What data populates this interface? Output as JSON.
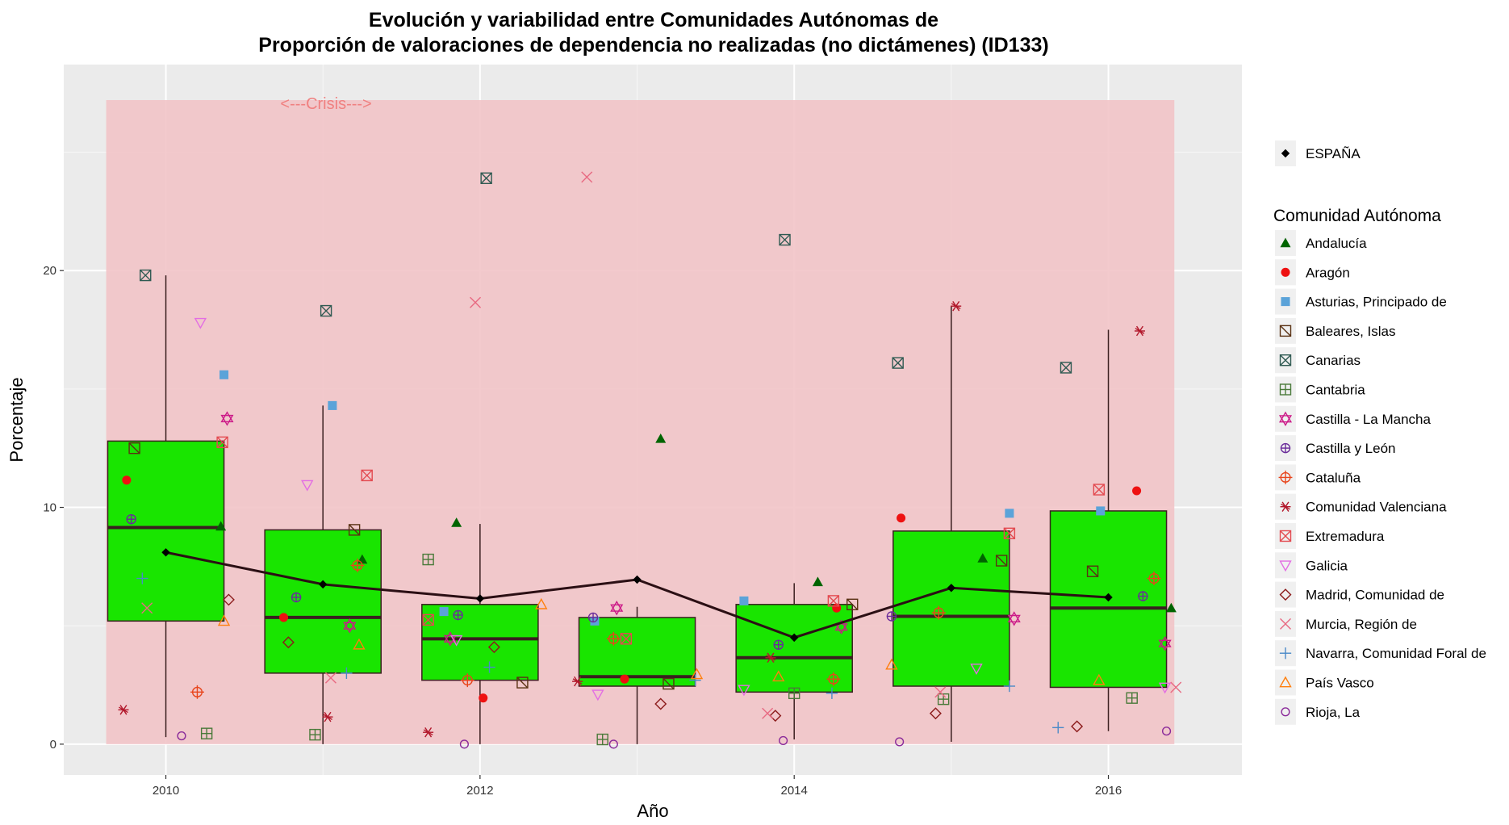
{
  "chart_data": {
    "type": "box",
    "title_line1": "Evolución y variabilidad entre Comunidades Autónomas de",
    "title_line2": "Proporción de valoraciones de dependencia no realizadas (no dictámenes) (ID133)",
    "xlabel": "Año",
    "ylabel": "Porcentaje",
    "xlim": [
      2009.35,
      2016.85
    ],
    "ylim": [
      -1.3,
      28.7
    ],
    "x_ticks": [
      2010,
      2012,
      2014,
      2016
    ],
    "y_ticks": [
      0,
      10,
      20
    ],
    "grid": true,
    "legend_position": "right",
    "colors": {
      "panel": "#ebebeb",
      "shade": "#f2c4c8",
      "box_fill": "#19e500",
      "box_line": "#3a1f1f",
      "espana_line": "#2b0f14",
      "annotation": "#f08080"
    },
    "crisis_band": {
      "x0": 2009.62,
      "x1": 2016.42,
      "y0": 0,
      "y1": 27.2
    },
    "annotation": {
      "text": "<---Crisis--->",
      "x": 2011.02,
      "y": 27.0
    },
    "boxes": [
      {
        "x": 2010,
        "whisker_low": 0.3,
        "q1": 5.2,
        "median": 9.15,
        "q3": 12.8,
        "whisker_high": 19.8
      },
      {
        "x": 2011,
        "whisker_low": 0.0,
        "q1": 3.0,
        "median": 5.35,
        "q3": 9.05,
        "whisker_high": 14.3
      },
      {
        "x": 2012,
        "whisker_low": 0.0,
        "q1": 2.7,
        "median": 4.45,
        "q3": 5.9,
        "whisker_high": 9.3
      },
      {
        "x": 2013,
        "whisker_low": 0.0,
        "q1": 2.45,
        "median": 2.85,
        "q3": 5.35,
        "whisker_high": 5.8
      },
      {
        "x": 2014,
        "whisker_low": 0.2,
        "q1": 2.2,
        "median": 3.65,
        "q3": 5.9,
        "whisker_high": 6.8
      },
      {
        "x": 2015,
        "whisker_low": 0.1,
        "q1": 2.45,
        "median": 5.4,
        "q3": 9.0,
        "whisker_high": 18.5
      },
      {
        "x": 2016,
        "whisker_low": 0.55,
        "q1": 2.4,
        "median": 5.75,
        "q3": 9.85,
        "whisker_high": 17.5
      }
    ],
    "espana": {
      "name": "ESPAÑA",
      "x": [
        2010,
        2011,
        2012,
        2013,
        2014,
        2015,
        2016
      ],
      "values": [
        8.1,
        6.75,
        6.15,
        6.95,
        4.5,
        6.6,
        6.2
      ]
    },
    "legend_title": "Comunidad Autónoma",
    "series": [
      {
        "name": "Andalucía",
        "shape": "tri-filled",
        "color": "#006400",
        "points": [
          [
            2010.35,
            9.2
          ],
          [
            2011.25,
            7.8
          ],
          [
            2011.85,
            9.35
          ],
          [
            2013.15,
            12.9
          ],
          [
            2014.15,
            6.85
          ],
          [
            2015.2,
            7.85
          ],
          [
            2016.4,
            5.75
          ]
        ]
      },
      {
        "name": "Aragón",
        "shape": "circle-filled",
        "color": "#ee1111",
        "points": [
          [
            2009.75,
            11.15
          ],
          [
            2010.75,
            5.35
          ],
          [
            2012.02,
            1.95
          ],
          [
            2012.92,
            2.75
          ],
          [
            2014.27,
            5.75
          ],
          [
            2014.68,
            9.55
          ],
          [
            2016.18,
            10.7
          ]
        ]
      },
      {
        "name": "Asturias, Principado de",
        "shape": "square-filled",
        "color": "#5ba3d9",
        "points": [
          [
            2010.37,
            15.6
          ],
          [
            2011.06,
            14.3
          ],
          [
            2011.77,
            5.6
          ],
          [
            2012.73,
            5.2
          ],
          [
            2013.68,
            6.05
          ],
          [
            2015.37,
            9.75
          ],
          [
            2015.95,
            9.85
          ]
        ]
      },
      {
        "name": "Baleares, Islas",
        "shape": "square-diag",
        "color": "#5a3214",
        "points": [
          [
            2009.8,
            12.5
          ],
          [
            2011.2,
            9.05
          ],
          [
            2012.27,
            2.6
          ],
          [
            2013.2,
            2.55
          ],
          [
            2014.37,
            5.9
          ],
          [
            2015.32,
            7.75
          ],
          [
            2015.9,
            7.3
          ]
        ]
      },
      {
        "name": "Canarias",
        "shape": "square-x",
        "color": "#2f5a52",
        "points": [
          [
            2009.87,
            19.8
          ],
          [
            2011.02,
            18.3
          ],
          [
            2012.04,
            23.9
          ],
          [
            2013.94,
            21.3
          ],
          [
            2014.66,
            16.1
          ],
          [
            2015.73,
            15.9
          ]
        ]
      },
      {
        "name": "Cantabria",
        "shape": "square-plus",
        "color": "#4a7a3a",
        "points": [
          [
            2010.26,
            0.45
          ],
          [
            2010.95,
            0.4
          ],
          [
            2011.67,
            7.8
          ],
          [
            2012.78,
            0.2
          ],
          [
            2014.0,
            2.15
          ],
          [
            2014.95,
            1.9
          ],
          [
            2016.15,
            1.95
          ]
        ]
      },
      {
        "name": "Castilla - La Mancha",
        "shape": "star6",
        "color": "#cc1a88",
        "points": [
          [
            2010.39,
            13.75
          ],
          [
            2011.17,
            5.0
          ],
          [
            2011.81,
            4.45
          ],
          [
            2012.87,
            5.75
          ],
          [
            2014.3,
            4.95
          ],
          [
            2015.4,
            5.3
          ],
          [
            2016.36,
            4.25
          ]
        ]
      },
      {
        "name": "Castilla y León",
        "shape": "circle-plus",
        "color": "#6a2c9a",
        "points": [
          [
            2009.78,
            9.5
          ],
          [
            2010.83,
            6.2
          ],
          [
            2011.86,
            5.45
          ],
          [
            2012.72,
            5.35
          ],
          [
            2013.9,
            4.2
          ],
          [
            2014.62,
            5.4
          ],
          [
            2016.22,
            6.25
          ]
        ]
      },
      {
        "name": "Cataluña",
        "shape": "circle-cross",
        "color": "#e8451c",
        "points": [
          [
            2010.2,
            2.2
          ],
          [
            2011.22,
            7.55
          ],
          [
            2011.92,
            2.7
          ],
          [
            2012.85,
            4.45
          ],
          [
            2014.25,
            2.75
          ],
          [
            2014.92,
            5.55
          ],
          [
            2016.29,
            7.0
          ]
        ]
      },
      {
        "name": "Comunidad Valenciana",
        "shape": "asterisk",
        "color": "#b2182b",
        "points": [
          [
            2009.73,
            1.45
          ],
          [
            2011.03,
            1.15
          ],
          [
            2011.67,
            0.5
          ],
          [
            2012.62,
            2.65
          ],
          [
            2013.85,
            3.65
          ],
          [
            2015.03,
            18.5
          ],
          [
            2016.2,
            17.45
          ]
        ]
      },
      {
        "name": "Extremadura",
        "shape": "square-x",
        "color": "#e34a50",
        "points": [
          [
            2010.36,
            12.75
          ],
          [
            2011.28,
            11.35
          ],
          [
            2011.67,
            5.25
          ],
          [
            2012.93,
            4.45
          ],
          [
            2014.25,
            6.05
          ],
          [
            2015.37,
            8.9
          ],
          [
            2015.94,
            10.75
          ]
        ]
      },
      {
        "name": "Galicia",
        "shape": "tri-down",
        "color": "#e36ee3",
        "points": [
          [
            2010.22,
            17.8
          ],
          [
            2010.9,
            10.95
          ],
          [
            2011.85,
            4.4
          ],
          [
            2012.75,
            2.1
          ],
          [
            2013.68,
            2.3
          ],
          [
            2015.16,
            3.2
          ],
          [
            2016.36,
            2.4
          ]
        ]
      },
      {
        "name": "Madrid, Comunidad de",
        "shape": "diamond",
        "color": "#8b1a1a",
        "points": [
          [
            2010.4,
            6.1
          ],
          [
            2010.78,
            4.3
          ],
          [
            2012.09,
            4.1
          ],
          [
            2013.15,
            1.7
          ],
          [
            2013.88,
            1.2
          ],
          [
            2014.9,
            1.3
          ],
          [
            2015.8,
            0.75
          ]
        ]
      },
      {
        "name": "Murcia, Región de",
        "shape": "x",
        "color": "#e86a82",
        "points": [
          [
            2009.88,
            5.75
          ],
          [
            2011.05,
            2.8
          ],
          [
            2011.97,
            18.65
          ],
          [
            2012.68,
            23.95
          ],
          [
            2013.83,
            1.3
          ],
          [
            2014.93,
            2.2
          ],
          [
            2016.43,
            2.4
          ]
        ]
      },
      {
        "name": "Navarra, Comunidad Foral de",
        "shape": "plus",
        "color": "#4a8ac8",
        "points": [
          [
            2009.85,
            7.0
          ],
          [
            2011.15,
            3.0
          ],
          [
            2012.06,
            3.25
          ],
          [
            2013.37,
            2.7
          ],
          [
            2014.24,
            2.15
          ],
          [
            2015.37,
            2.45
          ],
          [
            2015.68,
            0.7
          ]
        ]
      },
      {
        "name": "País Vasco",
        "shape": "tri-open",
        "color": "#ff7f0e",
        "points": [
          [
            2010.37,
            5.2
          ],
          [
            2011.23,
            4.2
          ],
          [
            2012.39,
            5.9
          ],
          [
            2013.38,
            2.95
          ],
          [
            2013.9,
            2.85
          ],
          [
            2014.62,
            3.35
          ],
          [
            2015.94,
            2.7
          ]
        ]
      },
      {
        "name": "Rioja, La",
        "shape": "circle",
        "color": "#8a2a9a",
        "points": [
          [
            2010.1,
            0.35
          ],
          [
            2011.9,
            0.0
          ],
          [
            2012.85,
            0.0
          ],
          [
            2013.93,
            0.15
          ],
          [
            2014.67,
            0.1
          ],
          [
            2016.37,
            0.55
          ]
        ]
      }
    ]
  }
}
